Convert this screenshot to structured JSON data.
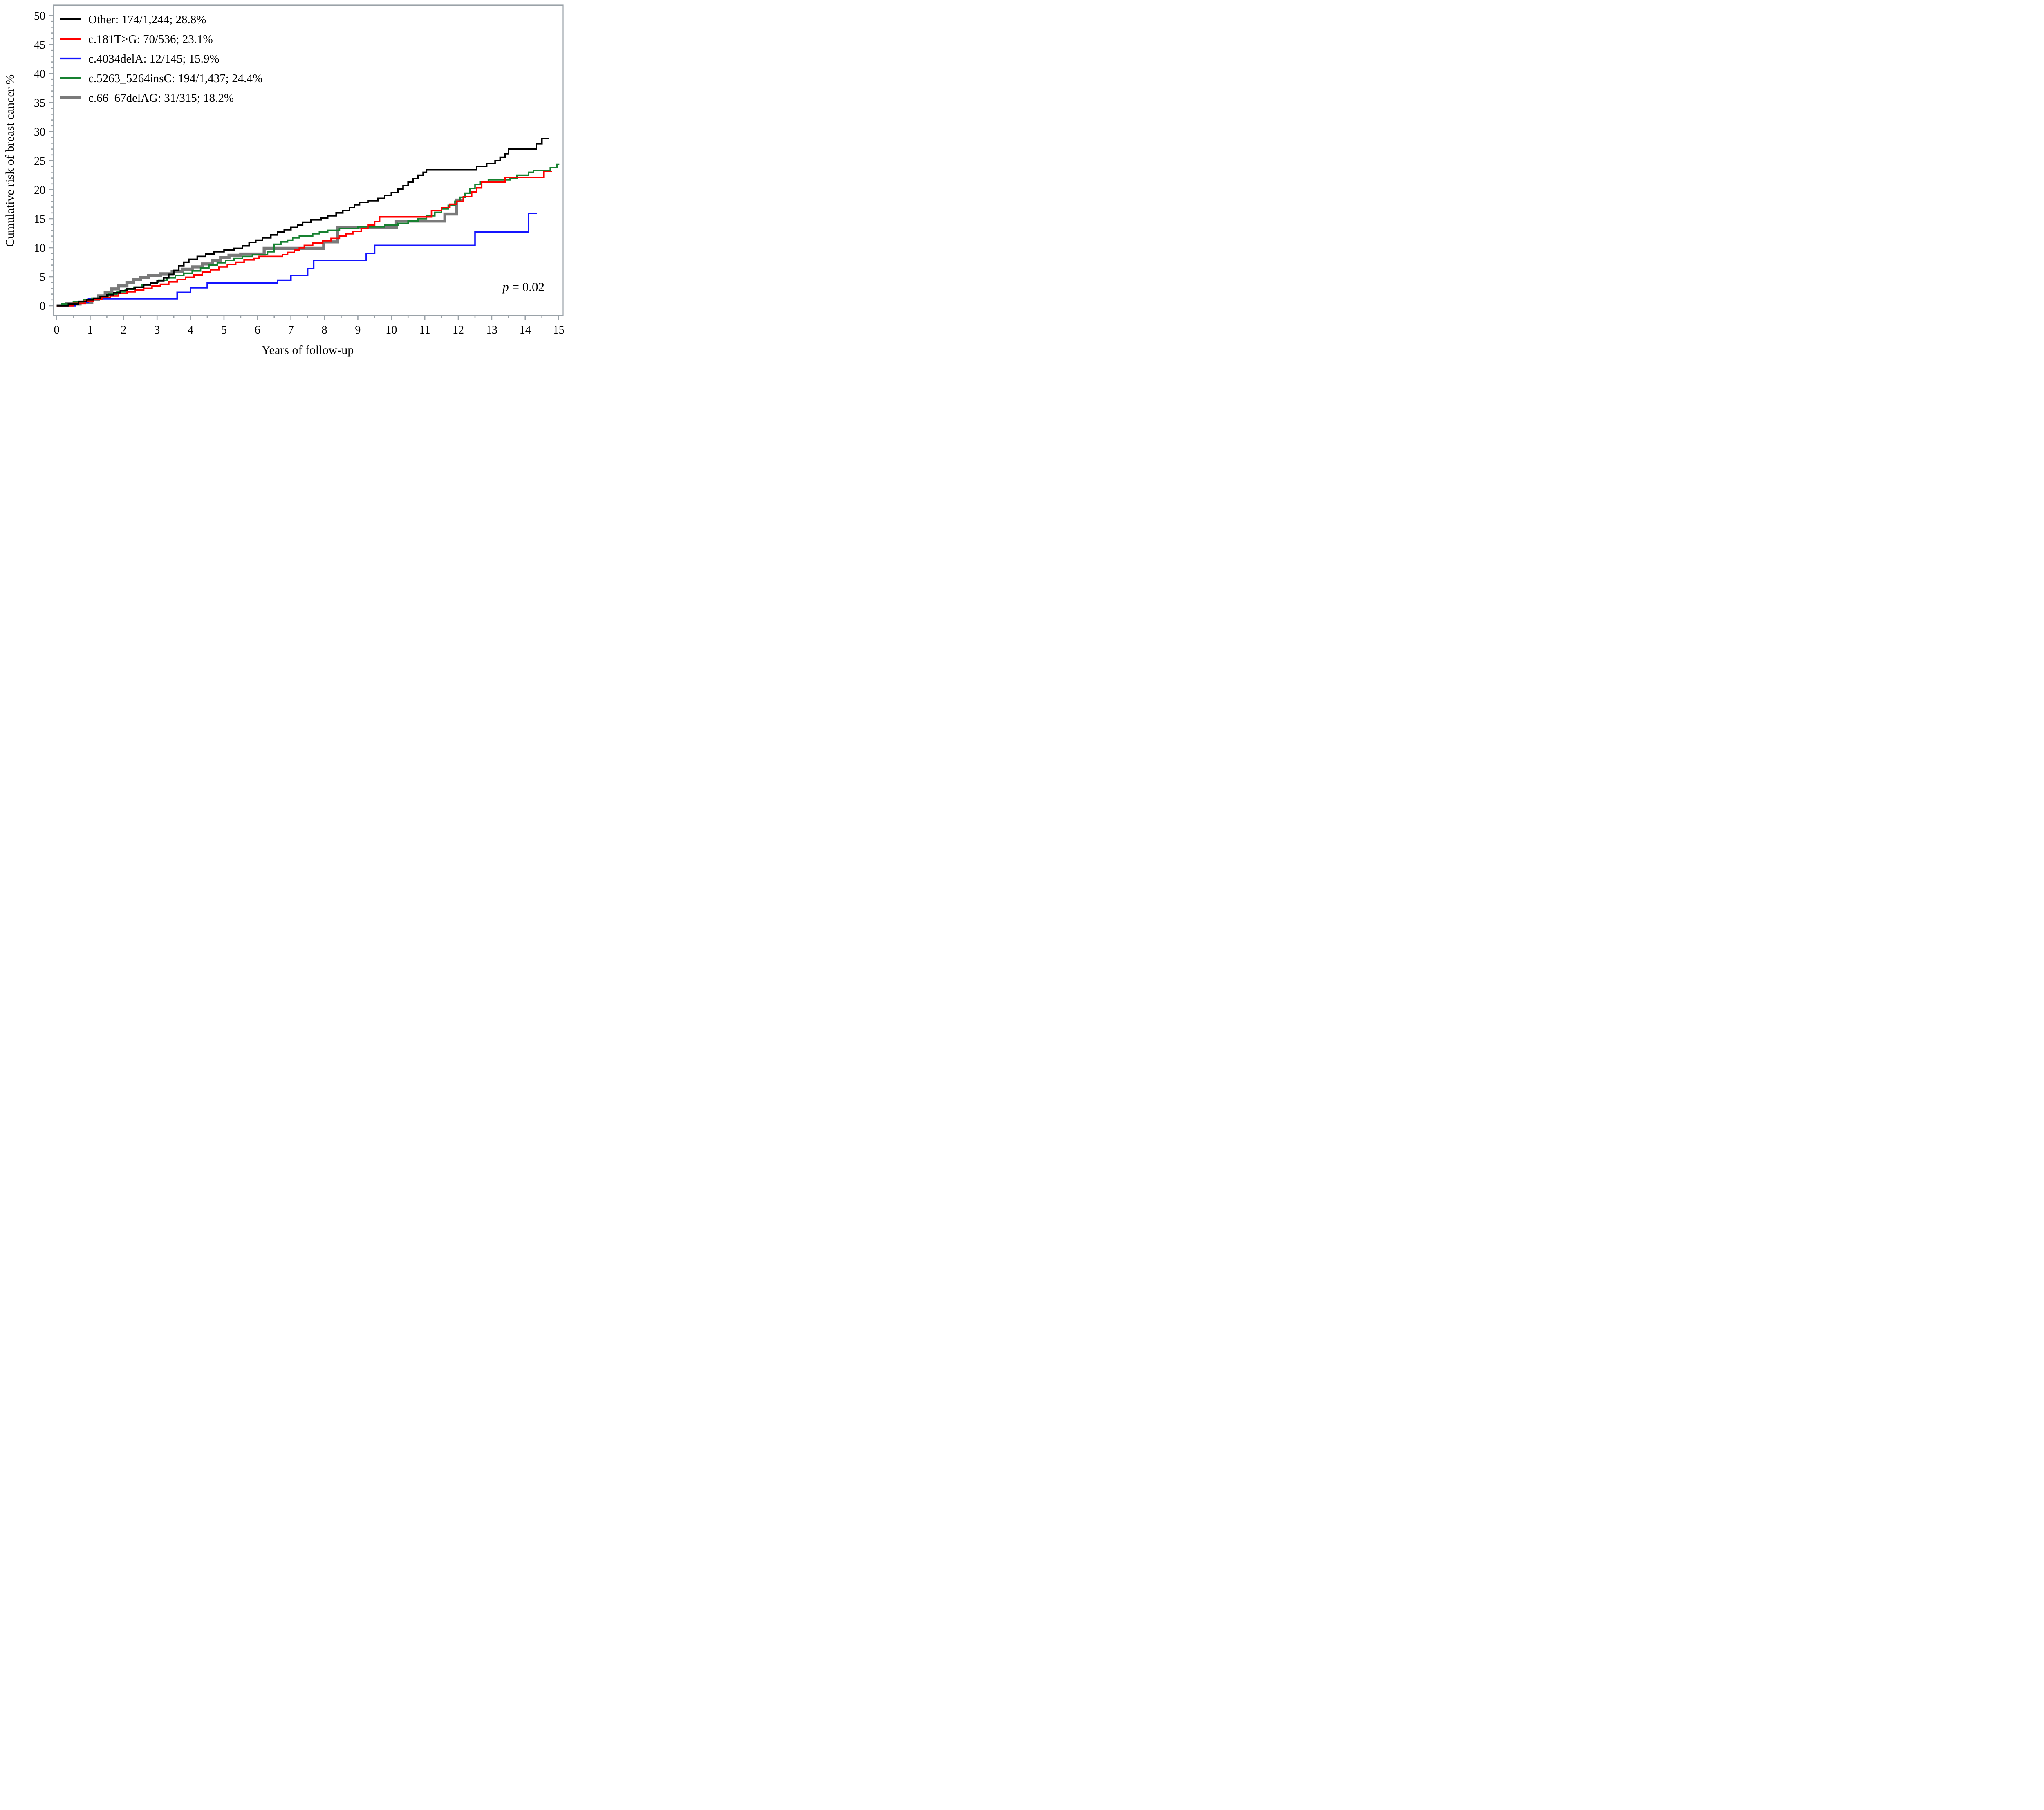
{
  "figure": {
    "ylabel": "Cumulative risk of breast cancer %",
    "xlabel": "Years of follow-up",
    "annotation": {
      "p_italic": "p",
      "p_rest": " = 0.02"
    }
  },
  "chart_data": {
    "type": "line",
    "subtype": "step-after-survival",
    "title": "",
    "xlabel": "Years of follow-up",
    "ylabel": "Cumulative risk of breast cancer %",
    "xlim": [
      0,
      15
    ],
    "ylim": [
      0,
      50
    ],
    "x_major_ticks": [
      0,
      1,
      2,
      3,
      4,
      5,
      6,
      7,
      8,
      9,
      10,
      11,
      12,
      13,
      14,
      15
    ],
    "x_minor_step": 0.5,
    "y_major_ticks": [
      0,
      5,
      10,
      15,
      20,
      25,
      30,
      35,
      40,
      45,
      50
    ],
    "y_minor_step": 1,
    "grid": false,
    "legend_position": "top-left-inside",
    "frame_color": "#9aa2a8",
    "annotation_text": "p = 0.02",
    "series": [
      {
        "name": "other",
        "label": "Other: 174/1,244; 28.8%",
        "events": "174/1,244",
        "final_percent": 28.8,
        "color": "#000000",
        "width": 3.6,
        "end_x": 14.72,
        "points": [
          [
            0,
            0
          ],
          [
            0.35,
            0.3
          ],
          [
            0.65,
            0.7
          ],
          [
            0.9,
            1.0
          ],
          [
            1.1,
            1.3
          ],
          [
            1.3,
            1.6
          ],
          [
            1.5,
            1.9
          ],
          [
            1.7,
            2.2
          ],
          [
            1.9,
            2.6
          ],
          [
            2.1,
            2.9
          ],
          [
            2.35,
            3.2
          ],
          [
            2.6,
            3.6
          ],
          [
            2.8,
            3.9
          ],
          [
            3.0,
            4.3
          ],
          [
            3.2,
            4.8
          ],
          [
            3.35,
            5.4
          ],
          [
            3.5,
            6.1
          ],
          [
            3.65,
            6.9
          ],
          [
            3.8,
            7.5
          ],
          [
            3.95,
            8.0
          ],
          [
            4.2,
            8.5
          ],
          [
            4.45,
            8.9
          ],
          [
            4.7,
            9.3
          ],
          [
            5.0,
            9.6
          ],
          [
            5.3,
            9.9
          ],
          [
            5.55,
            10.3
          ],
          [
            5.75,
            10.9
          ],
          [
            5.95,
            11.3
          ],
          [
            6.15,
            11.7
          ],
          [
            6.4,
            12.2
          ],
          [
            6.6,
            12.7
          ],
          [
            6.8,
            13.1
          ],
          [
            7.0,
            13.5
          ],
          [
            7.2,
            13.9
          ],
          [
            7.35,
            14.4
          ],
          [
            7.6,
            14.8
          ],
          [
            7.9,
            15.1
          ],
          [
            8.1,
            15.5
          ],
          [
            8.35,
            16.0
          ],
          [
            8.55,
            16.4
          ],
          [
            8.75,
            16.9
          ],
          [
            8.9,
            17.4
          ],
          [
            9.05,
            17.8
          ],
          [
            9.3,
            18.1
          ],
          [
            9.6,
            18.5
          ],
          [
            9.8,
            19.0
          ],
          [
            10.0,
            19.5
          ],
          [
            10.2,
            20.1
          ],
          [
            10.35,
            20.7
          ],
          [
            10.5,
            21.3
          ],
          [
            10.65,
            21.9
          ],
          [
            10.8,
            22.5
          ],
          [
            10.95,
            23.0
          ],
          [
            11.05,
            23.4
          ],
          [
            12.55,
            24.0
          ],
          [
            12.85,
            24.5
          ],
          [
            13.1,
            25.0
          ],
          [
            13.25,
            25.6
          ],
          [
            13.4,
            26.2
          ],
          [
            13.5,
            27.0
          ],
          [
            14.33,
            27.9
          ],
          [
            14.5,
            28.8
          ]
        ]
      },
      {
        "name": "c181tg",
        "label": "c.181T>G: 70/536; 23.1%",
        "events": "70/536",
        "final_percent": 23.1,
        "color": "#ff0000",
        "width": 3.6,
        "end_x": 14.8,
        "points": [
          [
            0,
            0
          ],
          [
            0.5,
            0.4
          ],
          [
            0.85,
            0.8
          ],
          [
            1.1,
            1.1
          ],
          [
            1.35,
            1.4
          ],
          [
            1.6,
            1.7
          ],
          [
            1.85,
            2.1
          ],
          [
            2.1,
            2.4
          ],
          [
            2.35,
            2.7
          ],
          [
            2.6,
            3.0
          ],
          [
            2.85,
            3.4
          ],
          [
            3.1,
            3.7
          ],
          [
            3.35,
            4.1
          ],
          [
            3.6,
            4.5
          ],
          [
            3.85,
            4.9
          ],
          [
            4.1,
            5.3
          ],
          [
            4.35,
            5.8
          ],
          [
            4.6,
            6.2
          ],
          [
            4.85,
            6.7
          ],
          [
            5.1,
            7.1
          ],
          [
            5.35,
            7.5
          ],
          [
            5.6,
            7.9
          ],
          [
            5.9,
            8.2
          ],
          [
            6.05,
            8.5
          ],
          [
            6.75,
            8.8
          ],
          [
            6.9,
            9.2
          ],
          [
            7.1,
            9.6
          ],
          [
            7.25,
            10.0
          ],
          [
            7.4,
            10.4
          ],
          [
            7.65,
            10.8
          ],
          [
            7.95,
            11.2
          ],
          [
            8.2,
            11.6
          ],
          [
            8.45,
            12.0
          ],
          [
            8.65,
            12.4
          ],
          [
            8.85,
            12.8
          ],
          [
            9.1,
            13.3
          ],
          [
            9.3,
            13.9
          ],
          [
            9.5,
            14.5
          ],
          [
            9.65,
            15.3
          ],
          [
            11.2,
            16.4
          ],
          [
            11.5,
            16.9
          ],
          [
            11.75,
            17.5
          ],
          [
            11.95,
            18.0
          ],
          [
            12.15,
            18.8
          ],
          [
            12.4,
            19.6
          ],
          [
            12.55,
            20.3
          ],
          [
            12.7,
            21.3
          ],
          [
            13.4,
            22.1
          ],
          [
            14.55,
            23.1
          ]
        ]
      },
      {
        "name": "c4034dela",
        "label": "c.4034delA: 12/145; 15.9%",
        "events": "12/145",
        "final_percent": 15.9,
        "color": "#1414ff",
        "width": 3.6,
        "end_x": 14.35,
        "points": [
          [
            0,
            0
          ],
          [
            0.55,
            0.6
          ],
          [
            0.95,
            1.2
          ],
          [
            3.6,
            2.3
          ],
          [
            4.0,
            3.1
          ],
          [
            4.5,
            3.9
          ],
          [
            6.6,
            4.4
          ],
          [
            7.0,
            5.2
          ],
          [
            7.5,
            6.4
          ],
          [
            7.68,
            7.8
          ],
          [
            9.25,
            9.0
          ],
          [
            9.5,
            10.4
          ],
          [
            12.5,
            12.7
          ],
          [
            14.1,
            15.9
          ]
        ]
      },
      {
        "name": "c5263insc",
        "label": "c.5263_5264insC: 194/1,437; 24.4%",
        "events": "194/1,437",
        "final_percent": 24.4,
        "color": "#168130",
        "width": 3.6,
        "end_x": 15.02,
        "points": [
          [
            0,
            0
          ],
          [
            0.15,
            0.3
          ],
          [
            0.5,
            0.65
          ],
          [
            0.8,
            1.0
          ],
          [
            1.05,
            1.3
          ],
          [
            1.3,
            1.6
          ],
          [
            1.55,
            2.0
          ],
          [
            1.8,
            2.4
          ],
          [
            2.05,
            2.8
          ],
          [
            2.3,
            3.2
          ],
          [
            2.55,
            3.6
          ],
          [
            2.8,
            4.0
          ],
          [
            3.05,
            4.4
          ],
          [
            3.3,
            4.8
          ],
          [
            3.55,
            5.2
          ],
          [
            3.8,
            5.6
          ],
          [
            4.05,
            6.0
          ],
          [
            4.3,
            6.5
          ],
          [
            4.55,
            7.0
          ],
          [
            4.8,
            7.4
          ],
          [
            5.05,
            7.8
          ],
          [
            5.3,
            8.2
          ],
          [
            5.55,
            8.5
          ],
          [
            5.85,
            8.8
          ],
          [
            6.3,
            9.3
          ],
          [
            6.5,
            10.6
          ],
          [
            6.7,
            11.0
          ],
          [
            6.9,
            11.3
          ],
          [
            7.05,
            11.7
          ],
          [
            7.25,
            12.0
          ],
          [
            7.65,
            12.4
          ],
          [
            7.85,
            12.7
          ],
          [
            8.1,
            13.0
          ],
          [
            8.45,
            13.3
          ],
          [
            9.0,
            13.6
          ],
          [
            9.8,
            13.9
          ],
          [
            10.2,
            14.2
          ],
          [
            10.5,
            14.6
          ],
          [
            10.8,
            15.0
          ],
          [
            11.05,
            15.5
          ],
          [
            11.3,
            16.1
          ],
          [
            11.5,
            16.7
          ],
          [
            11.7,
            17.3
          ],
          [
            11.9,
            18.0
          ],
          [
            12.05,
            18.7
          ],
          [
            12.2,
            19.4
          ],
          [
            12.35,
            20.2
          ],
          [
            12.5,
            20.9
          ],
          [
            12.65,
            21.4
          ],
          [
            12.9,
            21.7
          ],
          [
            13.55,
            22.0
          ],
          [
            13.75,
            22.5
          ],
          [
            14.1,
            23.0
          ],
          [
            14.25,
            23.3
          ],
          [
            14.75,
            23.8
          ],
          [
            14.95,
            24.4
          ]
        ]
      },
      {
        "name": "c66delag",
        "label": "c.66_67delAG: 31/315; 18.2%",
        "events": "31/315",
        "final_percent": 18.2,
        "color": "#7a7a7a",
        "width": 7.4,
        "end_x": 12.15,
        "points": [
          [
            0,
            0
          ],
          [
            0.3,
            0.3
          ],
          [
            0.7,
            0.6
          ],
          [
            1.05,
            1.1
          ],
          [
            1.25,
            1.7
          ],
          [
            1.45,
            2.3
          ],
          [
            1.65,
            2.9
          ],
          [
            1.85,
            3.4
          ],
          [
            2.1,
            4.0
          ],
          [
            2.3,
            4.5
          ],
          [
            2.5,
            4.9
          ],
          [
            2.75,
            5.2
          ],
          [
            3.1,
            5.5
          ],
          [
            3.45,
            5.9
          ],
          [
            3.75,
            6.3
          ],
          [
            4.05,
            6.7
          ],
          [
            4.35,
            7.2
          ],
          [
            4.65,
            7.8
          ],
          [
            4.9,
            8.3
          ],
          [
            5.15,
            8.7
          ],
          [
            5.5,
            8.9
          ],
          [
            6.2,
            9.9
          ],
          [
            7.98,
            11.0
          ],
          [
            8.39,
            13.5
          ],
          [
            10.15,
            14.6
          ],
          [
            11.6,
            15.8
          ],
          [
            11.95,
            18.2
          ]
        ]
      }
    ]
  }
}
